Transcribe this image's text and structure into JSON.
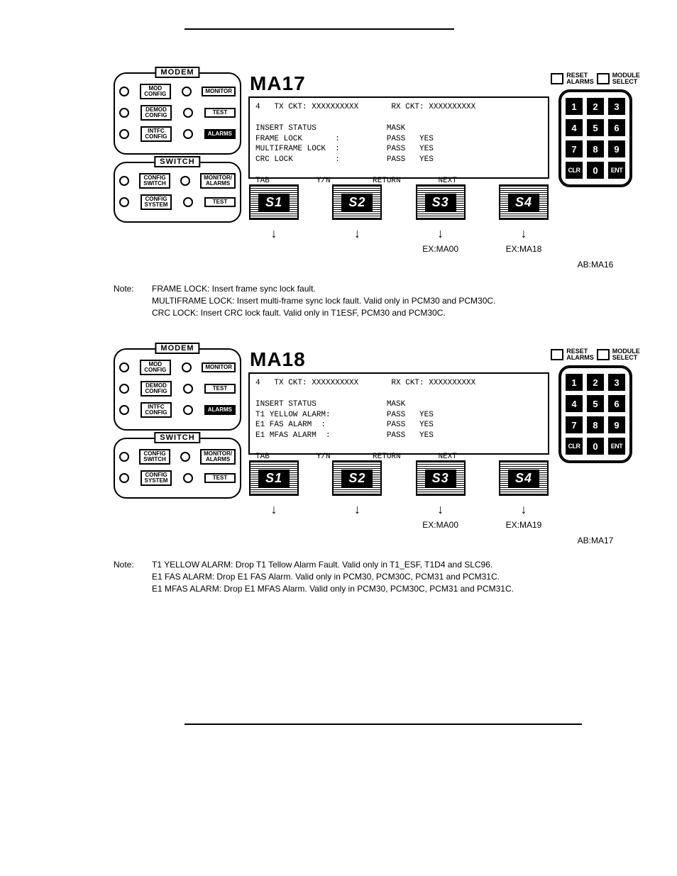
{
  "hr_color": "#000000",
  "modem_panel": {
    "label": "MODEM",
    "rows": [
      {
        "left_btn": "MOD\nCONFIG",
        "right_btn": "MONITOR"
      },
      {
        "left_btn": "DEMOD\nCONFIG",
        "right_btn": "TEST"
      },
      {
        "left_btn": "INTFC\nCONFIG",
        "right_btn": "ALARMS",
        "right_dark": true
      }
    ]
  },
  "switch_panel": {
    "label": "SWITCH",
    "rows": [
      {
        "left_btn": "CONFIG\nSWITCH",
        "right_btn": "MONITOR/\nALARMS"
      },
      {
        "left_btn": "CONFIG\nSYSTEM",
        "right_btn": "TEST"
      }
    ]
  },
  "keypad": {
    "top_labels": [
      {
        "t1": "RESET",
        "t2": "ALARMS"
      },
      {
        "t1": "MODULE",
        "t2": "SELECT"
      }
    ],
    "keys": [
      "1",
      "2",
      "3",
      "4",
      "5",
      "6",
      "7",
      "8",
      "9",
      "CLR",
      "0",
      "ENT"
    ]
  },
  "sections": [
    {
      "title": "MA17",
      "display_line1": "4   TX CKT: XXXXXXXXXX       RX CKT: XXXXXXXXXX",
      "display_body": "INSERT STATUS               MASK\nFRAME LOCK       :          PASS   YES\nMULTIFRAME LOCK  :          PASS   YES\nCRC LOCK         :          PASS   YES",
      "display_footer": "TAB          Y/N         RETURN        NEXT",
      "sbuttons": [
        "S1",
        "S2",
        "S3",
        "S4"
      ],
      "ex_labels": [
        "",
        "",
        "EX:MA00",
        "EX:MA18"
      ],
      "ab_label": "AB:MA16",
      "note": [
        "FRAME LOCK: Insert frame sync lock fault.",
        "MULTIFRAME LOCK: Insert multi-frame sync lock fault. Valid only in PCM30 and PCM30C.",
        "CRC LOCK: Insert CRC lock fault. Valid only in T1ESF, PCM30 and PCM30C."
      ]
    },
    {
      "title": "MA18",
      "display_line1": "4   TX CKT: XXXXXXXXXX       RX CKT: XXXXXXXXXX",
      "display_body": "INSERT STATUS               MASK\nT1 YELLOW ALARM:            PASS   YES\nE1 FAS ALARM  :             PASS   YES\nE1 MFAS ALARM  :            PASS   YES",
      "display_footer": "TAB          Y/N         RETURN        NEXT",
      "sbuttons": [
        "S1",
        "S2",
        "S3",
        "S4"
      ],
      "ex_labels": [
        "",
        "",
        "EX:MA00",
        "EX:MA19"
      ],
      "ab_label": "AB:MA17",
      "note": [
        "T1 YELLOW ALARM: Drop T1 Tellow Alarm Fault. Valid only in T1_ESF, T1D4 and SLC96.",
        "E1 FAS ALARM: Drop E1 FAS Alarm. Valid only in PCM30, PCM30C, PCM31 and PCM31C.",
        "E1 MFAS ALARM: Drop E1 MFAS Alarm. Valid only in PCM30, PCM30C, PCM31 and PCM31C."
      ]
    }
  ],
  "note_label": "Note:"
}
